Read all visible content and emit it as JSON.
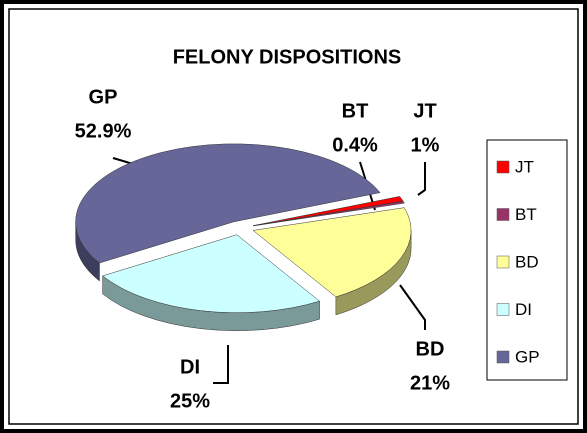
{
  "chart_data": {
    "type": "pie",
    "title": "FELONY DISPOSITIONS",
    "categories": [
      "JT",
      "BT",
      "BD",
      "DI",
      "GP"
    ],
    "values": [
      1,
      0.4,
      21,
      25,
      52.9
    ],
    "value_labels": [
      "1%",
      "0.4%",
      "21%",
      "25%",
      "52.9%"
    ],
    "colors": [
      "#ff0000",
      "#993366",
      "#ffff99",
      "#ccffff",
      "#666699"
    ],
    "legend": "right"
  }
}
